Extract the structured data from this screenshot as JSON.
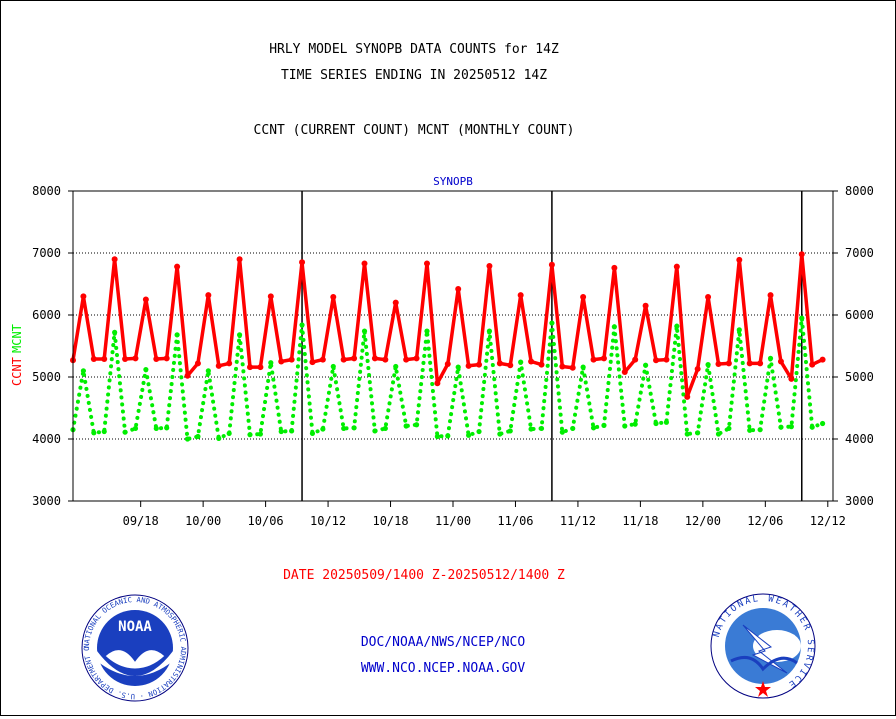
{
  "header": {
    "title_line1": "HRLY MODEL SYNOPB DATA COUNTS for 14Z",
    "title_line2": "TIME SERIES ENDING IN 20250512 14Z",
    "subtitle": "CCNT (CURRENT COUNT) MCNT (MONTHLY COUNT)"
  },
  "footer": {
    "date_range": "DATE 20250509/1400 Z-20250512/1400 Z",
    "org_line": "DOC/NOAA/NWS/NCEP/NCO",
    "url_line": "WWW.NCO.NCEP.NOAA.GOV",
    "noaa_logo_text": "NOAA",
    "noaa_ring_text": "NATIONAL OCEANIC AND ATMOSPHERIC ADMINISTRATION · U.S. DEPARTMENT OF COMMERCE ·",
    "nws_ring_text": "NATIONAL WEATHER SERVICE"
  },
  "colors": {
    "ccnt": "#ff0000",
    "mcnt": "#00ee00",
    "panel_label": "#0000cc",
    "footer_blue": "#0000cc",
    "date_red": "#ff0000"
  },
  "chart_data": {
    "type": "line",
    "panel_label": "SYNOPB",
    "ylabel_ccnt": "CCNT",
    "ylabel_mcnt": "MCNT",
    "ylim": [
      3000,
      8000
    ],
    "yticks": [
      3000,
      4000,
      5000,
      6000,
      7000,
      8000
    ],
    "xlim": [
      0,
      73
    ],
    "xticks": [
      {
        "x": 6.5,
        "label": "09/18"
      },
      {
        "x": 12.5,
        "label": "10/00"
      },
      {
        "x": 18.5,
        "label": "10/06"
      },
      {
        "x": 24.5,
        "label": "10/12"
      },
      {
        "x": 30.5,
        "label": "10/18"
      },
      {
        "x": 36.5,
        "label": "11/00"
      },
      {
        "x": 42.5,
        "label": "11/06"
      },
      {
        "x": 48.5,
        "label": "11/12"
      },
      {
        "x": 54.5,
        "label": "11/18"
      },
      {
        "x": 60.5,
        "label": "12/00"
      },
      {
        "x": 66.5,
        "label": "12/06"
      },
      {
        "x": 72.5,
        "label": "12/12"
      }
    ],
    "grid_y": [
      4000,
      5000,
      6000,
      7000
    ],
    "day_lines_x": [
      22,
      46,
      70
    ],
    "series": [
      {
        "name": "CCNT",
        "style": "solid",
        "values": [
          5270,
          6300,
          5290,
          5290,
          6900,
          5290,
          5300,
          6250,
          5290,
          5300,
          6780,
          5020,
          5220,
          6320,
          5180,
          5220,
          6900,
          5160,
          5160,
          6300,
          5250,
          5280,
          6850,
          5240,
          5280,
          6290,
          5280,
          5300,
          6830,
          5300,
          5280,
          6200,
          5280,
          5300,
          6830,
          4900,
          5210,
          6420,
          5180,
          5200,
          6790,
          5220,
          5190,
          6320,
          5250,
          5200,
          6810,
          5170,
          5150,
          6290,
          5280,
          5300,
          6760,
          5080,
          5280,
          6150,
          5270,
          5280,
          6780,
          4680,
          5130,
          6290,
          5210,
          5220,
          6890,
          5220,
          5220,
          6320,
          5250,
          4970,
          6980,
          5200,
          5280
        ]
      },
      {
        "name": "MCNT",
        "style": "dotted",
        "values": [
          4150,
          5100,
          4100,
          4120,
          5720,
          4110,
          4170,
          5120,
          4170,
          4180,
          5680,
          4000,
          4040,
          5100,
          4010,
          4090,
          5680,
          4070,
          4080,
          5230,
          4120,
          4130,
          5840,
          4090,
          4160,
          5170,
          4170,
          4180,
          5740,
          4130,
          4170,
          5170,
          4210,
          4230,
          5740,
          4040,
          4050,
          5160,
          4060,
          4120,
          5740,
          4080,
          4130,
          5240,
          4160,
          4170,
          5870,
          4110,
          4170,
          5160,
          4180,
          4220,
          5810,
          4210,
          4240,
          5190,
          4250,
          4270,
          5820,
          4080,
          4100,
          5200,
          4080,
          4170,
          5760,
          4140,
          4150,
          5300,
          4190,
          4200,
          5950,
          4190,
          4250
        ]
      }
    ]
  }
}
